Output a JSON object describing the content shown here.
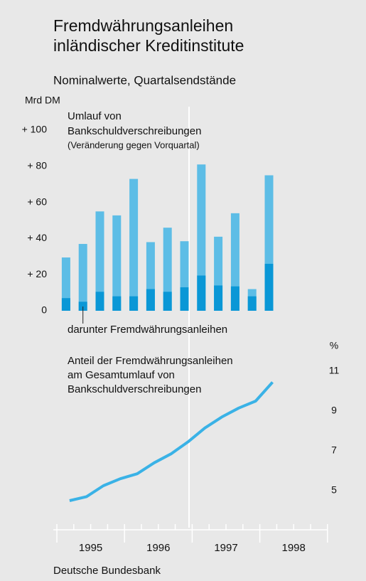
{
  "chart_data": [
    {
      "type": "bar",
      "title": [
        "Fremdwährungsanleihen",
        "inländischer Kreditinstitute"
      ],
      "subtitle": "Nominalwerte, Quartalsendstände",
      "unit": "Mrd DM",
      "categories": [
        null,
        null,
        null,
        null,
        null,
        null,
        null,
        null,
        null,
        null,
        null,
        null,
        null
      ],
      "series": [
        {
          "name": [
            "Umlauf von",
            "Bankschuldverschreibungen"
          ],
          "note": "(Veränderung gegen Vorquartal)",
          "color": "#5dbde6",
          "values": [
            29.5,
            37,
            55,
            52.8,
            73,
            38,
            46,
            38.5,
            81,
            41,
            54,
            12,
            75
          ]
        },
        {
          "name": "darunter Fremdwährungsanleihen",
          "color": "#0a97d6",
          "values": [
            7,
            5,
            10.5,
            8,
            8,
            12,
            10.5,
            13,
            19.5,
            14,
            13.5,
            8,
            26
          ]
        }
      ],
      "ylim": [
        0,
        100
      ],
      "yticks": [
        0,
        {
          "value": 20,
          "label": "+ 20"
        },
        {
          "value": 40,
          "label": "+ 40"
        },
        {
          "value": 60,
          "label": "+ 60"
        },
        {
          "value": 80,
          "label": "+ 80"
        },
        {
          "value": 100,
          "label": "+ 100"
        }
      ]
    },
    {
      "type": "line",
      "label": [
        "Anteil der Fremdwährungsanleihen",
        "am Gesamtumlauf von",
        "Bankschuldverschreibungen"
      ],
      "unit": "%",
      "categories": [
        null,
        null,
        null,
        null,
        null,
        null,
        null,
        null,
        null,
        null,
        null,
        null,
        null
      ],
      "series": [
        {
          "color": "#3ab2e6",
          "values": [
            4.5,
            4.7,
            5.25,
            5.6,
            5.85,
            6.4,
            6.85,
            7.45,
            8.15,
            8.7,
            9.15,
            9.5,
            10.45
          ]
        }
      ],
      "ylim": [
        3.5,
        12
      ],
      "yticks": [
        5,
        7,
        9,
        11
      ],
      "xlabels": [
        "1995",
        "1996",
        "1997",
        "1998"
      ],
      "footer": "Deutsche Bundesbank"
    }
  ]
}
